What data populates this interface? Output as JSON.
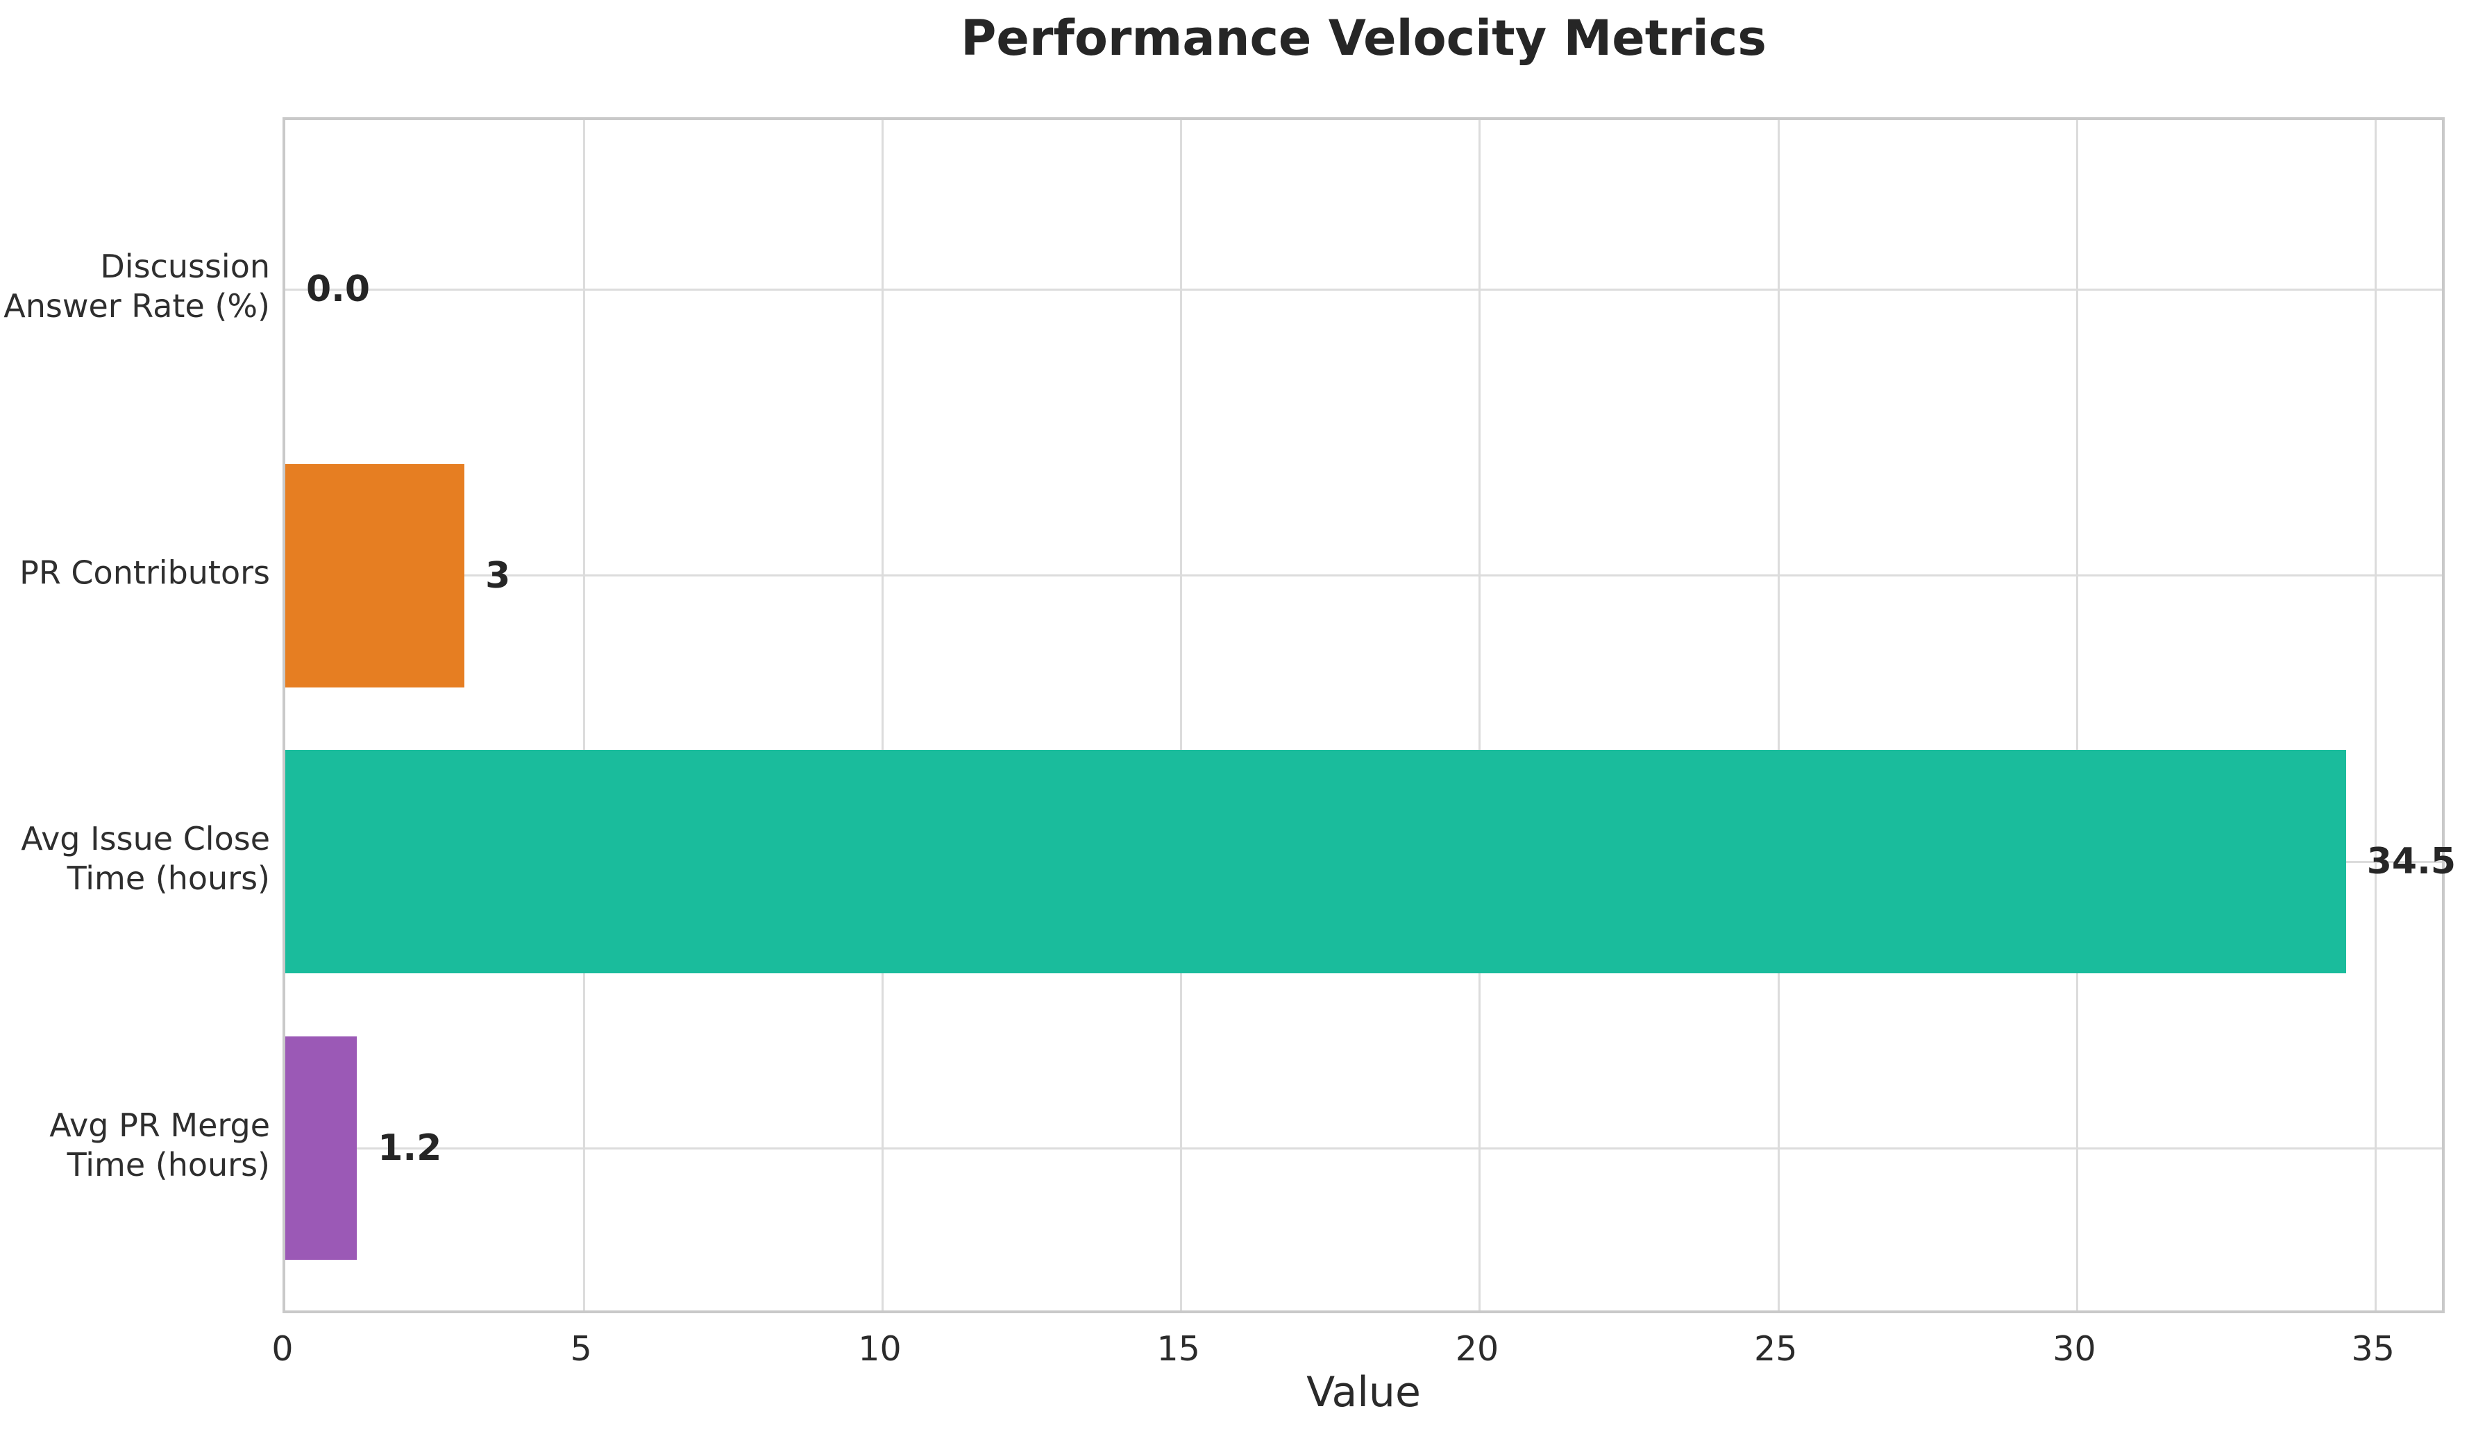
{
  "chart_data": {
    "type": "bar",
    "orientation": "horizontal",
    "title": "Performance Velocity Metrics",
    "xlabel": "Value",
    "ylabel": "",
    "categories": [
      "Discussion Answer Rate (%)",
      "PR Contributors",
      "Avg Issue Close Time (hours)",
      "Avg PR Merge Time (hours)"
    ],
    "category_lines": [
      [
        "Discussion",
        "Answer Rate (%)"
      ],
      [
        "PR Contributors"
      ],
      [
        "Avg Issue Close",
        "Time (hours)"
      ],
      [
        "Avg PR Merge",
        "Time (hours)"
      ]
    ],
    "values": [
      0.0,
      3,
      34.5,
      1.2
    ],
    "value_labels": [
      "0.0",
      "3",
      "34.5",
      "1.2"
    ],
    "bar_colors": [
      null,
      "#e67e22",
      "#1abc9c",
      "#9b59b6"
    ],
    "x_tick_values": [
      0,
      5,
      10,
      15,
      20,
      25,
      30,
      35
    ],
    "x_tick_labels": [
      "0",
      "5",
      "10",
      "15",
      "20",
      "25",
      "30",
      "35"
    ],
    "xlim": [
      0,
      36.2
    ],
    "grid": true,
    "legend_position": "none"
  },
  "colors": {
    "background": "#ffffff",
    "grid": "#dcdcdc",
    "spine": "#c9c9c9",
    "title_text": "#262626",
    "tick_text": "#2b2b2b",
    "category_text": "#2e2e2e",
    "value_label_text": "#262626",
    "bar_orange": "#e67e22",
    "bar_teal": "#1abc9c",
    "bar_purple": "#9b59b6"
  }
}
